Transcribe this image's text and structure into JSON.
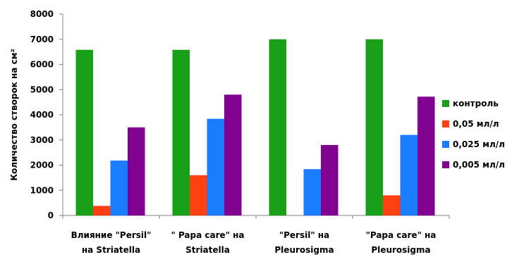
{
  "chart_data": {
    "type": "bar",
    "title": "",
    "xlabel": "",
    "ylabel": "Количество створок на см²",
    "ylim": [
      0,
      8000
    ],
    "yticks": [
      0,
      1000,
      2000,
      3000,
      4000,
      5000,
      6000,
      7000,
      8000
    ],
    "grid": false,
    "legend_position": "right",
    "categories": [
      [
        "Влияние \"Persil\"",
        "на Striatella"
      ],
      [
        "\" Papa care\" на",
        "Striatella"
      ],
      [
        "\"Persil\"  на",
        "Pleurosigma"
      ],
      [
        "\"Papa care\" на",
        "Pleurosigma"
      ]
    ],
    "series": [
      {
        "name": "контроль",
        "color": "#18a018",
        "values": [
          6580,
          6580,
          7000,
          7000
        ]
      },
      {
        "name": "0,05  мл/л",
        "color": "#ff4010",
        "values": [
          380,
          1600,
          0,
          800
        ]
      },
      {
        "name": "0,025  мл/л",
        "color": "#1a7cff",
        "values": [
          2180,
          3840,
          1840,
          3200
        ]
      },
      {
        "name": "0,005  мл/л",
        "color": "#800090",
        "values": [
          3500,
          4800,
          2800,
          4720
        ]
      }
    ]
  }
}
